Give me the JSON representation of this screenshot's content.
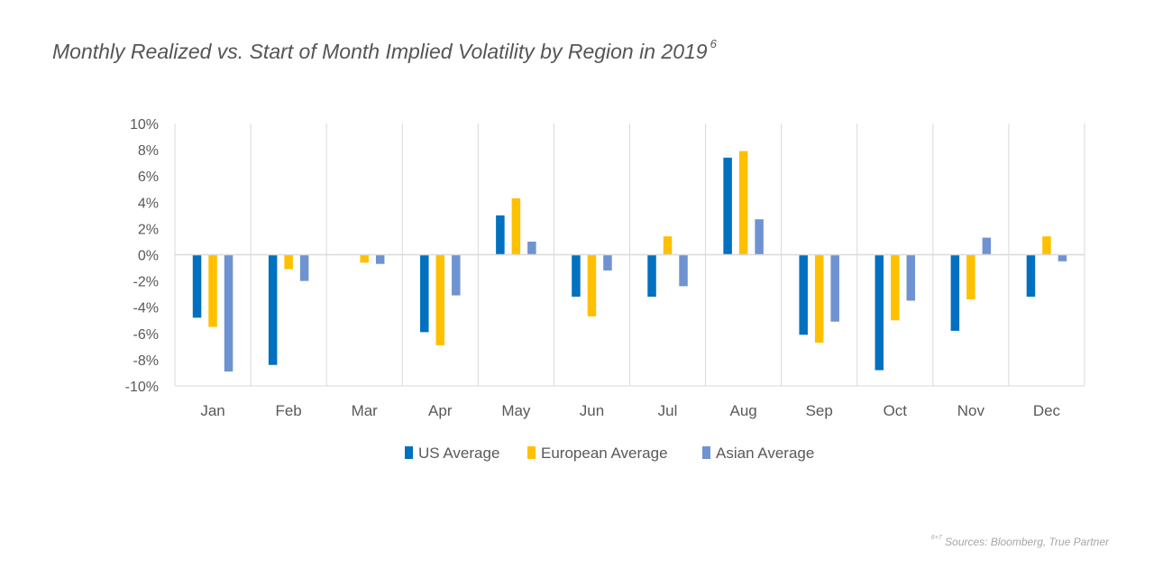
{
  "chart_data": {
    "type": "bar",
    "title": "Monthly Realized vs. Start of Month Implied Volatility by Region in 2019",
    "title_footnote": "6",
    "categories": [
      "Jan",
      "Feb",
      "Mar",
      "Apr",
      "May",
      "Jun",
      "Jul",
      "Aug",
      "Sep",
      "Oct",
      "Nov",
      "Dec"
    ],
    "series": [
      {
        "name": "US Average",
        "color": "#0070C0",
        "values": [
          -4.8,
          -8.4,
          0,
          -5.9,
          3.0,
          -3.2,
          -3.2,
          7.4,
          -6.1,
          -8.8,
          -5.8,
          -3.2
        ]
      },
      {
        "name": "European Average",
        "color": "#FFC000",
        "values": [
          -5.5,
          -1.1,
          -0.6,
          -6.9,
          4.3,
          -4.7,
          1.4,
          7.9,
          -6.7,
          -5.0,
          -3.4,
          1.4
        ]
      },
      {
        "name": "Asian Average",
        "color": "#6F93D1",
        "values": [
          -8.9,
          -2.0,
          -0.7,
          -3.1,
          1.0,
          -1.2,
          -2.4,
          2.7,
          -5.1,
          -3.5,
          1.3,
          -0.5
        ]
      }
    ],
    "ylim": [
      -10,
      10
    ],
    "yticks": [
      10,
      8,
      6,
      4,
      2,
      0,
      -2,
      -4,
      -6,
      -8,
      -10
    ],
    "ytick_labels": [
      "10%",
      "8%",
      "6%",
      "4%",
      "2%",
      "0%",
      "-2%",
      "-4%",
      "-6%",
      "-8%",
      "-10%"
    ],
    "xlabel": "",
    "ylabel": "",
    "grid": "vertical category separators",
    "legend_position": "bottom"
  },
  "source_note": {
    "marker": "6+7",
    "text": "Sources: Bloomberg, True Partner"
  }
}
